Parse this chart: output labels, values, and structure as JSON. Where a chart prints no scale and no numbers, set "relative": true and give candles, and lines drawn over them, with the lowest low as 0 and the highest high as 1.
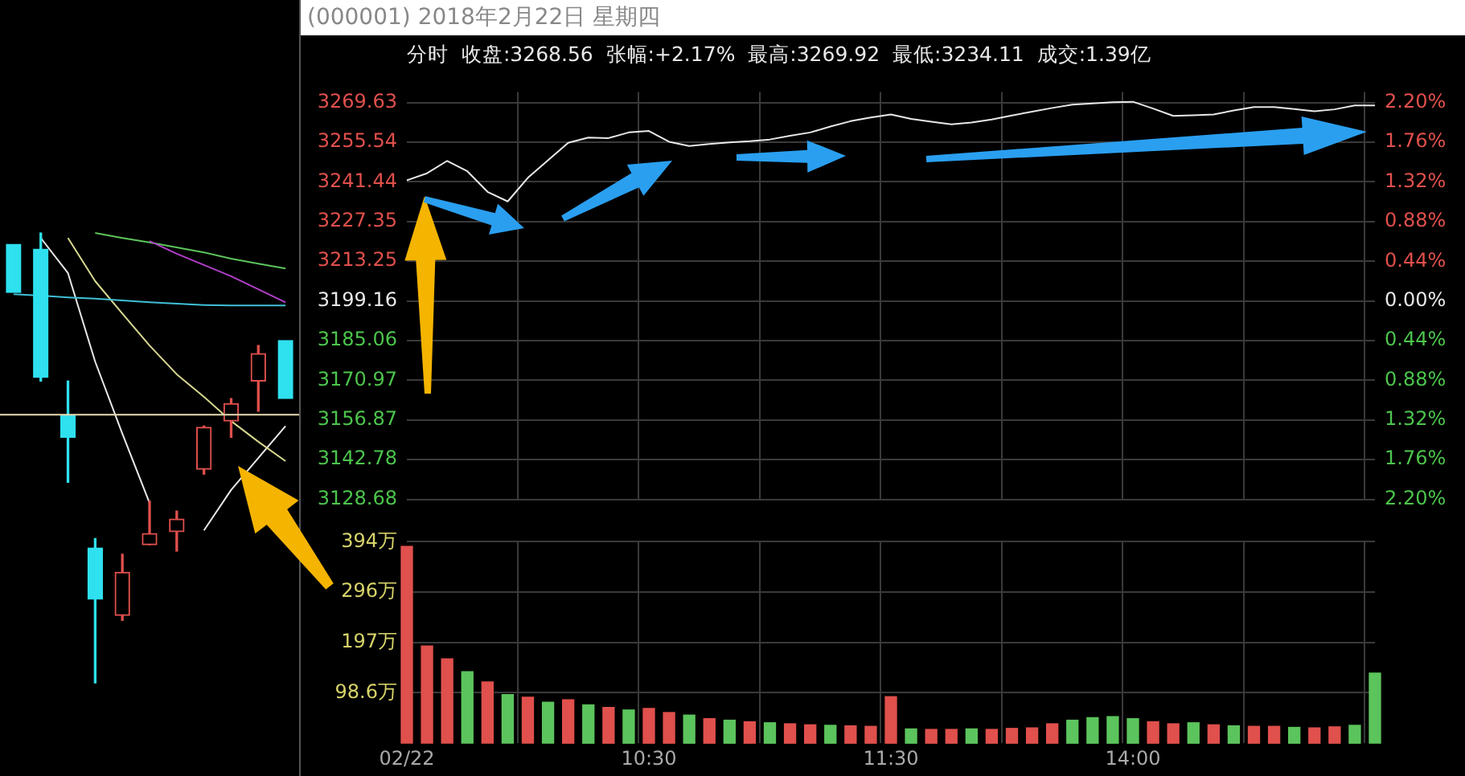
{
  "chart_data": [
    {
      "type": "candlestick",
      "relative": true,
      "categories": [
        null,
        null,
        null,
        null,
        null,
        null,
        null,
        null,
        null,
        null,
        null
      ],
      "ohlc": [
        [
          0.975,
          0.975,
          0.868,
          0.868
        ],
        [
          0.964,
          1,
          0.671,
          0.679
        ],
        [
          0.596,
          0.671,
          0.446,
          0.546
        ],
        [
          0.3,
          0.321,
          0,
          0.186
        ],
        [
          0.15,
          0.286,
          0.139,
          0.246
        ],
        [
          0.307,
          0.404,
          0.307,
          0.332
        ],
        [
          0.336,
          0.382,
          0.293,
          0.364
        ],
        [
          0.475,
          0.571,
          0.464,
          0.568
        ],
        [
          0.582,
          0.632,
          0.546,
          0.621
        ],
        [
          0.671,
          0.75,
          0.604,
          0.732
        ],
        [
          0.761,
          0.761,
          0.632,
          0.632
        ]
      ],
      "colors": [
        "#2fe0ef",
        "#2fe0ef",
        "#2fe0ef",
        "#2fe0ef",
        "#e0504c",
        "#e0504c",
        "#e0504c",
        "#e0504c",
        "#e0504c",
        "#e0504c",
        "#2fe0ef"
      ],
      "series": [
        {
          "type": "line",
          "color": "#b040c8",
          "values": [
            null,
            null,
            null,
            null,
            null,
            0.982,
            0.954,
            0.929,
            0.904,
            0.875,
            0.846
          ]
        },
        {
          "type": "line",
          "color": "#5cc45c",
          "values": [
            null,
            null,
            null,
            1,
            0.989,
            0.979,
            0.968,
            0.957,
            0.943,
            0.932,
            0.921
          ]
        },
        {
          "type": "line",
          "color": "#40c0d8",
          "values": [
            0.864,
            0.861,
            0.857,
            0.854,
            0.85,
            0.846,
            0.843,
            0.84,
            0.839,
            0.839,
            0.839
          ]
        },
        {
          "type": "line",
          "color": "#d8d890",
          "values": [
            null,
            null,
            0.989,
            0.893,
            0.821,
            0.75,
            0.686,
            0.636,
            0.582,
            0.536,
            0.493
          ]
        },
        {
          "type": "line",
          "color": "#e8e8e8",
          "values": [
            null,
            0.989,
            0.911,
            0.714,
            0.554,
            0.4,
            null,
            0.339,
            0.429,
            0.5,
            0.571
          ]
        }
      ],
      "ref_lines": [
        {
          "axis": "y",
          "value": 0.596,
          "color": "#e8dcb0"
        }
      ]
    },
    {
      "type": "line",
      "title": "(000001) 2018年2月22日 星期四",
      "subtitle": "分时  收盘:3268.56  张幅:+2.17%  最高:3269.92  最低:3234.11  成交:1.39亿",
      "categories": [
        null,
        null,
        null,
        null,
        null,
        null,
        null,
        null,
        null,
        null,
        null,
        null,
        null,
        null,
        null,
        null,
        null,
        null,
        null,
        null,
        null,
        null,
        null,
        null,
        null,
        null,
        null,
        null,
        null,
        null,
        null,
        null,
        null,
        null,
        null,
        null,
        null,
        null,
        null,
        null,
        null,
        null,
        null,
        null,
        null,
        null,
        null,
        null,
        null
      ],
      "values": [
        3242.0,
        3244.5,
        3248.9,
        3245.2,
        3237.9,
        3234.5,
        3242.9,
        3249.1,
        3255.3,
        3257.2,
        3257.0,
        3259.0,
        3259.5,
        3255.7,
        3254.2,
        3254.9,
        3255.5,
        3255.9,
        3256.5,
        3257.8,
        3259.0,
        3261.1,
        3263.0,
        3264.3,
        3265.4,
        3263.8,
        3262.8,
        3261.9,
        3262.5,
        3263.6,
        3265.0,
        3266.4,
        3267.7,
        3268.9,
        3269.3,
        3269.7,
        3269.9,
        3267.5,
        3264.9,
        3265.1,
        3265.4,
        3266.8,
        3268.0,
        3268.0,
        3267.3,
        3266.5,
        3267.2,
        3268.6,
        3268.6
      ],
      "color": "#e8e8e8",
      "marker": "none",
      "ylim": [
        3128.68,
        3273.4
      ],
      "yticks": [
        3128.68,
        3142.78,
        3156.87,
        3170.97,
        3185.06,
        3199.16,
        3213.25,
        3227.35,
        3241.44,
        3255.54,
        3269.63
      ],
      "y2lim": [
        -2.2,
        2.32
      ],
      "y2ticks": [
        {
          "value": -2.2,
          "label": "2.20%"
        },
        {
          "value": -1.76,
          "label": "1.76%"
        },
        {
          "value": -1.32,
          "label": "1.32%"
        },
        {
          "value": -0.88,
          "label": "0.88%"
        },
        {
          "value": -0.44,
          "label": "0.44%"
        },
        {
          "value": 0,
          "label": "0.00%"
        },
        {
          "value": 0.44,
          "label": "0.44%"
        },
        {
          "value": 0.88,
          "label": "0.88%"
        },
        {
          "value": 1.32,
          "label": "1.32%"
        },
        {
          "value": 1.76,
          "label": "1.76%"
        },
        {
          "value": 2.2,
          "label": "2.20%"
        }
      ],
      "grid": true,
      "tick_labels": "y"
    },
    {
      "type": "bar",
      "categories": [
        "02/22",
        null,
        null,
        null,
        null,
        null,
        null,
        null,
        null,
        null,
        null,
        null,
        "10:30",
        null,
        null,
        null,
        null,
        null,
        null,
        null,
        null,
        null,
        null,
        null,
        "11:30",
        null,
        null,
        null,
        null,
        null,
        null,
        null,
        null,
        null,
        null,
        null,
        "14:00",
        null,
        null,
        null,
        null,
        null,
        null,
        null,
        null,
        null,
        null,
        null,
        null
      ],
      "values": [
        385,
        190,
        165,
        140,
        120,
        95,
        90,
        80,
        85,
        75,
        70,
        65,
        68,
        60,
        55,
        48,
        45,
        42,
        40,
        38,
        36,
        35,
        34,
        33,
        91,
        28,
        27,
        27,
        28,
        27,
        29,
        30,
        38,
        45,
        50,
        52,
        48,
        42,
        38,
        40,
        36,
        34,
        33,
        33,
        31,
        30,
        32,
        35,
        137
      ],
      "colors": [
        "#e0504c",
        "#e0504c",
        "#e0504c",
        "#5cc45c",
        "#e0504c",
        "#5cc45c",
        "#e0504c",
        "#5cc45c",
        "#e0504c",
        "#5cc45c",
        "#e0504c",
        "#5cc45c",
        "#e0504c",
        "#e0504c",
        "#5cc45c",
        "#e0504c",
        "#5cc45c",
        "#e0504c",
        "#5cc45c",
        "#e0504c",
        "#e0504c",
        "#5cc45c",
        "#e0504c",
        "#e0504c",
        "#e0504c",
        "#5cc45c",
        "#e0504c",
        "#e0504c",
        "#5cc45c",
        "#e0504c",
        "#e0504c",
        "#e0504c",
        "#e0504c",
        "#5cc45c",
        "#5cc45c",
        "#5cc45c",
        "#5cc45c",
        "#e0504c",
        "#e0504c",
        "#5cc45c",
        "#e0504c",
        "#5cc45c",
        "#e0504c",
        "#e0504c",
        "#5cc45c",
        "#e0504c",
        "#e0504c",
        "#5cc45c",
        "#5cc45c"
      ],
      "ylim": [
        0,
        394
      ],
      "yticks": [
        {
          "value": 98.6,
          "label": "98.6万"
        },
        {
          "value": 197,
          "label": "197万"
        },
        {
          "value": 296,
          "label": "296万"
        },
        {
          "value": 394,
          "label": "394万"
        }
      ],
      "grid": true
    }
  ]
}
